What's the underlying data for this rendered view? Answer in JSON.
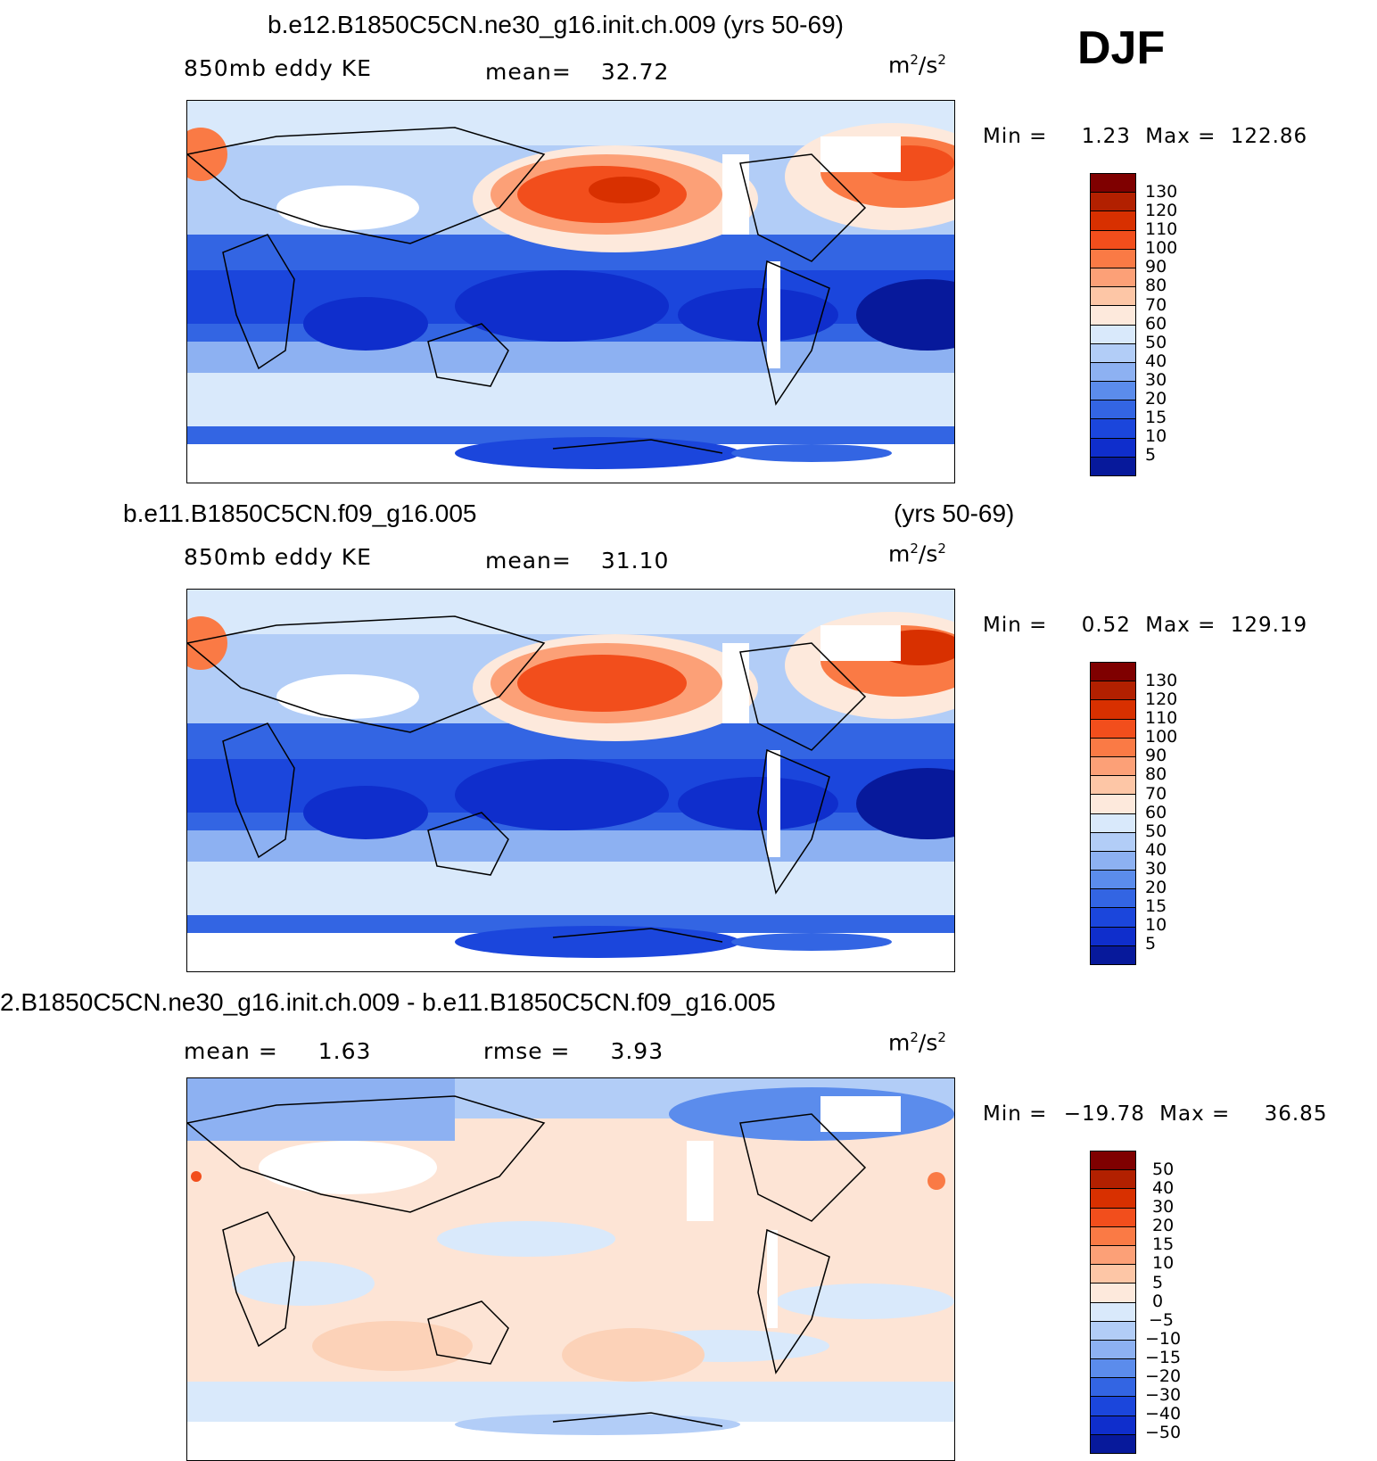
{
  "season": "DJF",
  "panels": [
    {
      "title": "b.e12.B1850C5CN.ne30_g16.init.ch.009 (yrs 50-69)",
      "title_right": "",
      "left_label": "850mb eddy KE",
      "stat_label": "mean=",
      "stat_value": "32.72",
      "stat2_label": "",
      "stat2_value": "",
      "units": "m",
      "units_sup": "2",
      "units_tail": "/s",
      "units_sup2": "2",
      "min_label": "Min =",
      "min_value": "1.23",
      "max_label": "Max =",
      "max_value": "122.86",
      "colorbar_labels": [
        "130",
        "120",
        "110",
        "100",
        "90",
        "80",
        "70",
        "60",
        "50",
        "40",
        "30",
        "20",
        "15",
        "10",
        "5"
      ]
    },
    {
      "title": "b.e11.B1850C5CN.f09_g16.005",
      "title_right": "(yrs 50-69)",
      "left_label": "850mb eddy KE",
      "stat_label": "mean=",
      "stat_value": "31.10",
      "stat2_label": "",
      "stat2_value": "",
      "units": "m",
      "units_sup": "2",
      "units_tail": "/s",
      "units_sup2": "2",
      "min_label": "Min =",
      "min_value": "0.52",
      "max_label": "Max =",
      "max_value": "129.19",
      "colorbar_labels": [
        "130",
        "120",
        "110",
        "100",
        "90",
        "80",
        "70",
        "60",
        "50",
        "40",
        "30",
        "20",
        "15",
        "10",
        "5"
      ]
    },
    {
      "title": "2.B1850C5CN.ne30_g16.init.ch.009 - b.e11.B1850C5CN.f09_g16.005",
      "title_right": "",
      "left_label": "mean =",
      "stat_label": "",
      "stat_value": "1.63",
      "stat2_label": "rmse =",
      "stat2_value": "3.93",
      "units": "m",
      "units_sup": "2",
      "units_tail": "/s",
      "units_sup2": "2",
      "min_label": "Min =",
      "min_value": "−19.78",
      "max_label": "Max =",
      "max_value": "36.85",
      "colorbar_labels": [
        "50",
        "40",
        "30",
        "20",
        "15",
        "10",
        "5",
        "0",
        "−5",
        "−10",
        "−15",
        "−20",
        "−30",
        "−40",
        "−50"
      ]
    }
  ],
  "colors": {
    "scale": [
      "#7f0000",
      "#b22000",
      "#d83000",
      "#f24e1c",
      "#fa7a45",
      "#fca077",
      "#fdc6a6",
      "#fde9dc",
      "#d9e9fb",
      "#b2cdf7",
      "#8db1f2",
      "#5b8cec",
      "#3365e3",
      "#1b46dc",
      "#0f2ecc",
      "#07199b"
    ],
    "ocean_light": "#d9e9fb",
    "ocean_mid": "#8db1f2",
    "storm_red": "#f24e1c",
    "diff_base": "#fde4d5"
  }
}
